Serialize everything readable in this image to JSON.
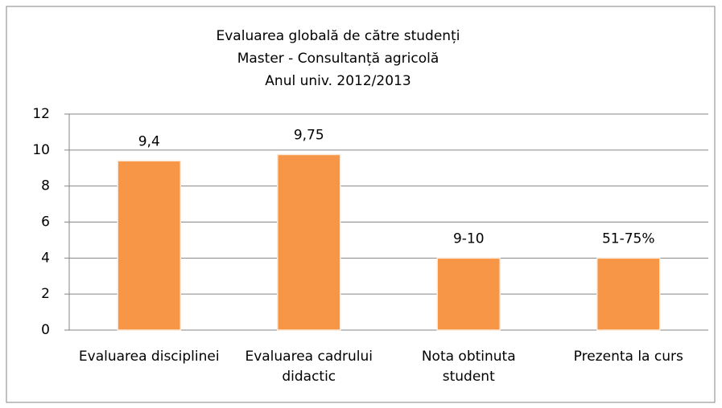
{
  "chart_data": {
    "type": "bar",
    "title": "Evaluarea globală de către studenți",
    "subtitle": [
      "Master - Consultanță agricolă",
      "Anul univ. 2012/2013"
    ],
    "categories": [
      "Evaluarea disciplinei",
      "Evaluarea cadrului didactic",
      "Nota obtinuta student",
      "Prezenta la curs"
    ],
    "values": [
      9.4,
      9.75,
      4,
      4
    ],
    "value_labels": [
      "9,4",
      "9,75",
      "9-10",
      "51-75%"
    ],
    "color": "#f79646",
    "ylim": [
      0,
      12
    ],
    "yticks": [
      0,
      2,
      4,
      6,
      8,
      10,
      12
    ],
    "grid": true
  }
}
